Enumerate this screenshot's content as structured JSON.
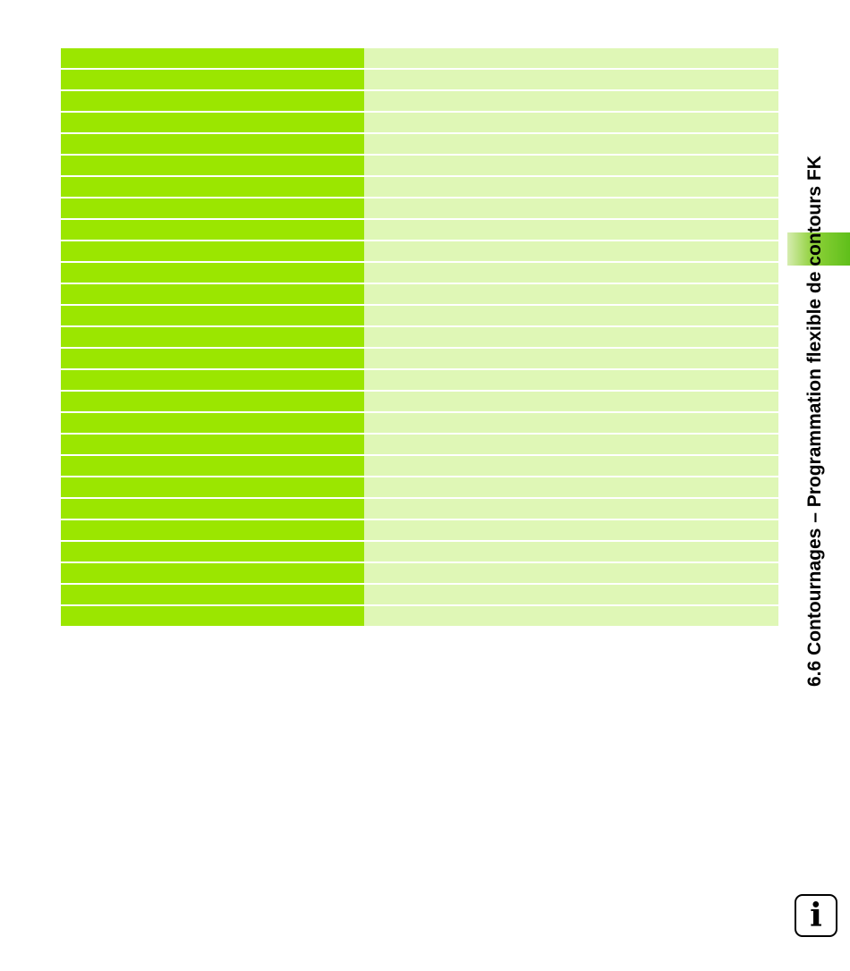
{
  "header": {
    "section_title": "6.6 Contournages – Programmation flexible de contours FK"
  },
  "table": {
    "row_count": 27,
    "colors": {
      "left_column": "#9be600",
      "right_column": "#dff7b6"
    }
  },
  "info_icon": {
    "glyph": "i",
    "icon": "info-icon"
  },
  "colors": {
    "tab_accent": "#5fbf1a"
  }
}
